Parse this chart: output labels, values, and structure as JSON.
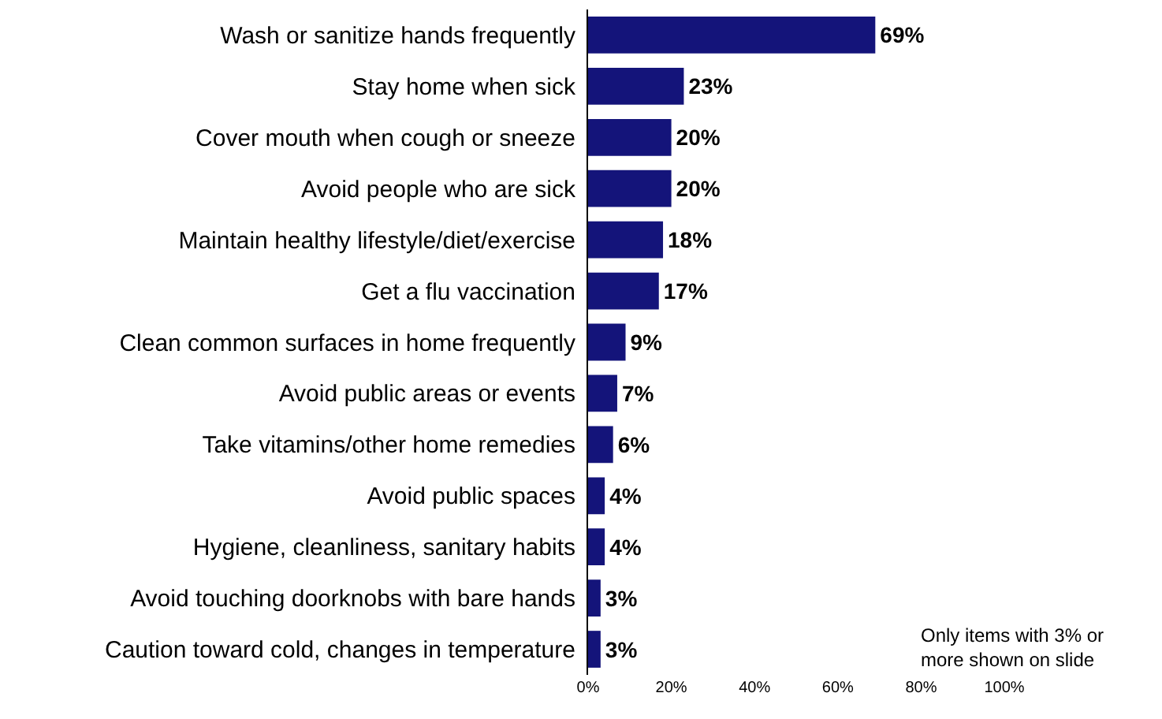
{
  "chart_data": {
    "type": "bar",
    "orientation": "horizontal",
    "categories": [
      "Wash or sanitize hands frequently",
      "Stay home when sick",
      "Cover mouth when cough or sneeze",
      "Avoid people who are sick",
      "Maintain healthy lifestyle/diet/exercise",
      "Get a flu vaccination",
      "Clean common surfaces in home frequently",
      "Avoid public areas or events",
      "Take vitamins/other home remedies",
      "Avoid public spaces",
      "Hygiene, cleanliness, sanitary habits",
      "Avoid touching doorknobs with bare hands",
      "Caution toward cold, changes in temperature"
    ],
    "values": [
      69,
      23,
      20,
      20,
      18,
      17,
      9,
      7,
      6,
      4,
      4,
      3,
      3
    ],
    "value_labels": [
      "69%",
      "23%",
      "20%",
      "20%",
      "18%",
      "17%",
      "9%",
      "7%",
      "6%",
      "4%",
      "4%",
      "3%",
      "3%"
    ],
    "color": "#14147a",
    "xlim": [
      0,
      100
    ],
    "xticks": [
      {
        "value": 0,
        "label": "0%"
      },
      {
        "value": 20,
        "label": "20%"
      },
      {
        "value": 40,
        "label": "40%"
      },
      {
        "value": 60,
        "label": "60%"
      },
      {
        "value": 80,
        "label": "80%"
      },
      {
        "value": 100,
        "label": "100%"
      }
    ],
    "grid": false,
    "legend": false,
    "annotations": [
      "Only items with 3% or more shown on slide"
    ]
  }
}
